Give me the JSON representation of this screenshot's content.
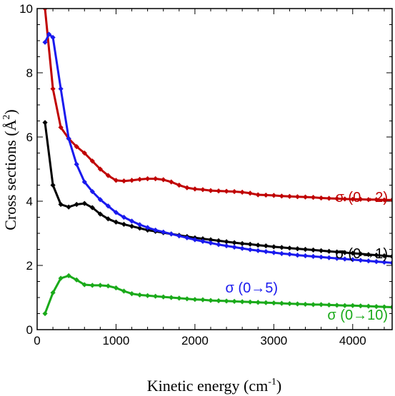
{
  "chart_data": {
    "type": "line",
    "xlabel_main": "Kinetic energy (cm",
    "xlabel_sup": "-1",
    "xlabel_end": ")",
    "ylabel_main": "Cross sections (Å",
    "ylabel_sup": "2",
    "ylabel_end": ")",
    "xlim": [
      0,
      4500
    ],
    "ylim": [
      0,
      10
    ],
    "xticks": [
      0,
      1000,
      2000,
      3000,
      4000
    ],
    "yticks": [
      0,
      2,
      4,
      6,
      8,
      10
    ],
    "grid": false,
    "series": [
      {
        "name": "σ (0→2)",
        "color": "#c00000",
        "x": [
          100,
          200,
          300,
          400,
          500,
          600,
          700,
          800,
          900,
          1000,
          1100,
          1200,
          1300,
          1400,
          1500,
          1600,
          1700,
          1800,
          1900,
          2000,
          2100,
          2200,
          2300,
          2400,
          2500,
          2600,
          2700,
          2800,
          2900,
          3000,
          3100,
          3200,
          3300,
          3400,
          3500,
          3600,
          3700,
          3800,
          3900,
          4000,
          4100,
          4200,
          4300,
          4400,
          4500
        ],
        "y": [
          10.0,
          7.5,
          6.3,
          5.95,
          5.7,
          5.5,
          5.25,
          5.0,
          4.8,
          4.65,
          4.63,
          4.65,
          4.68,
          4.7,
          4.7,
          4.67,
          4.6,
          4.5,
          4.42,
          4.38,
          4.36,
          4.33,
          4.32,
          4.31,
          4.3,
          4.28,
          4.25,
          4.2,
          4.19,
          4.18,
          4.16,
          4.15,
          4.14,
          4.13,
          4.12,
          4.1,
          4.09,
          4.08,
          4.07,
          4.06,
          4.06,
          4.05,
          4.05,
          4.04,
          4.04
        ]
      },
      {
        "name": "σ (0→1)",
        "color": "#000000",
        "x": [
          100,
          200,
          300,
          400,
          500,
          600,
          700,
          800,
          900,
          1000,
          1100,
          1200,
          1300,
          1400,
          1500,
          1600,
          1700,
          1800,
          1900,
          2000,
          2100,
          2200,
          2300,
          2400,
          2500,
          2600,
          2700,
          2800,
          2900,
          3000,
          3100,
          3200,
          3300,
          3400,
          3500,
          3600,
          3700,
          3800,
          3900,
          4000,
          4100,
          4200,
          4300,
          4400,
          4500
        ],
        "y": [
          6.45,
          4.5,
          3.9,
          3.82,
          3.9,
          3.93,
          3.8,
          3.6,
          3.45,
          3.35,
          3.28,
          3.22,
          3.16,
          3.1,
          3.06,
          3.02,
          2.98,
          2.94,
          2.9,
          2.86,
          2.83,
          2.8,
          2.77,
          2.74,
          2.71,
          2.68,
          2.66,
          2.63,
          2.61,
          2.58,
          2.56,
          2.54,
          2.52,
          2.5,
          2.48,
          2.46,
          2.44,
          2.42,
          2.4,
          2.38,
          2.36,
          2.34,
          2.32,
          2.3,
          2.28
        ]
      },
      {
        "name": "σ (0→5)",
        "color": "#1a1aee",
        "x": [
          100,
          150,
          200,
          300,
          400,
          500,
          600,
          700,
          800,
          900,
          1000,
          1100,
          1200,
          1300,
          1400,
          1500,
          1600,
          1700,
          1800,
          1900,
          2000,
          2100,
          2200,
          2300,
          2400,
          2500,
          2600,
          2700,
          2800,
          2900,
          3000,
          3100,
          3200,
          3300,
          3400,
          3500,
          3600,
          3700,
          3800,
          3900,
          4000,
          4100,
          4200,
          4300,
          4400,
          4500
        ],
        "y": [
          8.95,
          9.2,
          9.1,
          7.5,
          5.95,
          5.15,
          4.6,
          4.3,
          4.05,
          3.85,
          3.65,
          3.5,
          3.38,
          3.27,
          3.18,
          3.1,
          3.04,
          2.98,
          2.92,
          2.86,
          2.8,
          2.75,
          2.7,
          2.65,
          2.61,
          2.57,
          2.53,
          2.49,
          2.46,
          2.43,
          2.4,
          2.37,
          2.35,
          2.32,
          2.3,
          2.28,
          2.26,
          2.24,
          2.22,
          2.2,
          2.18,
          2.16,
          2.14,
          2.12,
          2.1,
          2.08
        ]
      },
      {
        "name": "σ (0→10)",
        "color": "#1aaa1a",
        "x": [
          100,
          200,
          300,
          400,
          500,
          600,
          700,
          800,
          900,
          1000,
          1100,
          1200,
          1300,
          1400,
          1500,
          1600,
          1700,
          1800,
          1900,
          2000,
          2100,
          2200,
          2300,
          2400,
          2500,
          2600,
          2700,
          2800,
          2900,
          3000,
          3100,
          3200,
          3300,
          3400,
          3500,
          3600,
          3700,
          3800,
          3900,
          4000,
          4100,
          4200,
          4300,
          4400,
          4500
        ],
        "y": [
          0.5,
          1.15,
          1.6,
          1.68,
          1.55,
          1.4,
          1.38,
          1.38,
          1.36,
          1.3,
          1.2,
          1.12,
          1.08,
          1.06,
          1.04,
          1.02,
          1.0,
          0.98,
          0.96,
          0.94,
          0.93,
          0.91,
          0.9,
          0.89,
          0.88,
          0.87,
          0.86,
          0.85,
          0.84,
          0.83,
          0.82,
          0.81,
          0.8,
          0.79,
          0.78,
          0.78,
          0.77,
          0.76,
          0.75,
          0.75,
          0.74,
          0.73,
          0.72,
          0.71,
          0.7
        ]
      }
    ]
  },
  "labels": {
    "s2": "σ (0→2)",
    "s1": "σ (0→1)",
    "s5": "σ (0→5)",
    "s10": "σ (0→10)"
  }
}
